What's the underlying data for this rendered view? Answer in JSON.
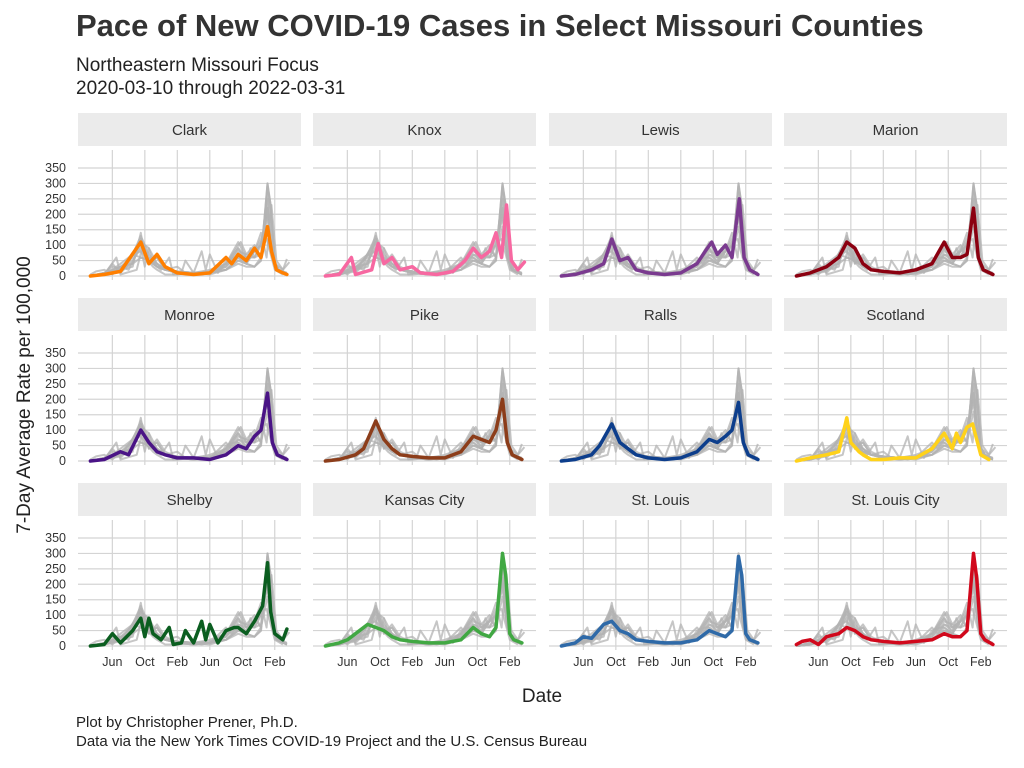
{
  "header": {
    "title": "Pace of New COVID-19 Cases in Select Missouri Counties",
    "subtitle_line1": "Northeastern Missouri Focus",
    "subtitle_line2": "2020-03-10 through 2022-03-31"
  },
  "caption": {
    "line1": "Plot by Christopher Prener, Ph.D.",
    "line2": "Data via the New York Times COVID-19 Project and the U.S. Census Bureau"
  },
  "chart_data": {
    "type": "line",
    "layout": "faceted small multiples, 3 rows x 4 columns, shared axes",
    "xlabel": "Date",
    "ylabel": "7-Day Average Rate per 100,000",
    "x_range_months": [
      0,
      25
    ],
    "x_unit": "months since 2020-03-01",
    "x_ticks": [
      {
        "label": "Jun",
        "month": 3
      },
      {
        "label": "Oct",
        "month": 7
      },
      {
        "label": "Feb",
        "month": 11
      },
      {
        "label": "Jun",
        "month": 15
      },
      {
        "label": "Oct",
        "month": 19
      },
      {
        "label": "Feb",
        "month": 23
      }
    ],
    "ylim": [
      0,
      350
    ],
    "y_ticks": [
      0,
      50,
      100,
      150,
      200,
      250,
      300,
      350
    ],
    "background_series_color": "#b3b3b3",
    "background_note": "every panel shows all counties in grey behind the highlighted county",
    "panels": [
      {
        "name": "Clark",
        "color": "#ff7f00",
        "points": [
          [
            0.3,
            0
          ],
          [
            2,
            5
          ],
          [
            4,
            15
          ],
          [
            6.5,
            110
          ],
          [
            7.5,
            40
          ],
          [
            8.5,
            70
          ],
          [
            9.5,
            30
          ],
          [
            11,
            10
          ],
          [
            13,
            5
          ],
          [
            15,
            10
          ],
          [
            17,
            60
          ],
          [
            17.7,
            40
          ],
          [
            18.5,
            70
          ],
          [
            19.5,
            50
          ],
          [
            20.5,
            90
          ],
          [
            21.3,
            60
          ],
          [
            22.1,
            160
          ],
          [
            22.6,
            80
          ],
          [
            23.2,
            20
          ],
          [
            24,
            10
          ],
          [
            24.5,
            5
          ]
        ]
      },
      {
        "name": "Knox",
        "color": "#f768a1",
        "points": [
          [
            0.3,
            0
          ],
          [
            2,
            5
          ],
          [
            3.5,
            60
          ],
          [
            4,
            5
          ],
          [
            6,
            20
          ],
          [
            6.8,
            105
          ],
          [
            7.5,
            40
          ],
          [
            8.5,
            60
          ],
          [
            9.5,
            20
          ],
          [
            11,
            30
          ],
          [
            12,
            10
          ],
          [
            14,
            5
          ],
          [
            16,
            15
          ],
          [
            17.5,
            50
          ],
          [
            18.5,
            90
          ],
          [
            19.5,
            60
          ],
          [
            20.5,
            80
          ],
          [
            21.3,
            140
          ],
          [
            22,
            60
          ],
          [
            22.6,
            230
          ],
          [
            23.2,
            50
          ],
          [
            24,
            20
          ],
          [
            24.8,
            45
          ]
        ]
      },
      {
        "name": "Lewis",
        "color": "#7a3a8f",
        "points": [
          [
            0.3,
            0
          ],
          [
            2,
            5
          ],
          [
            4,
            20
          ],
          [
            5.5,
            40
          ],
          [
            6.5,
            120
          ],
          [
            7.5,
            50
          ],
          [
            8.5,
            60
          ],
          [
            9.5,
            20
          ],
          [
            11,
            10
          ],
          [
            13,
            5
          ],
          [
            15,
            10
          ],
          [
            17,
            40
          ],
          [
            18,
            80
          ],
          [
            18.8,
            110
          ],
          [
            19.5,
            70
          ],
          [
            20.5,
            100
          ],
          [
            21.3,
            60
          ],
          [
            22.2,
            250
          ],
          [
            22.8,
            60
          ],
          [
            23.5,
            20
          ],
          [
            24.5,
            5
          ]
        ]
      },
      {
        "name": "Marion",
        "color": "#8b0010",
        "points": [
          [
            0.3,
            0
          ],
          [
            2,
            10
          ],
          [
            4,
            30
          ],
          [
            5.5,
            60
          ],
          [
            6.5,
            110
          ],
          [
            7.5,
            90
          ],
          [
            8.5,
            40
          ],
          [
            9.5,
            20
          ],
          [
            11,
            15
          ],
          [
            13,
            10
          ],
          [
            15,
            20
          ],
          [
            17,
            40
          ],
          [
            18.5,
            110
          ],
          [
            19.5,
            60
          ],
          [
            20.5,
            60
          ],
          [
            21.3,
            70
          ],
          [
            22.1,
            220
          ],
          [
            22.7,
            60
          ],
          [
            23.3,
            20
          ],
          [
            24.5,
            5
          ]
        ]
      },
      {
        "name": "Monroe",
        "color": "#4a1486",
        "points": [
          [
            0.3,
            0
          ],
          [
            2,
            5
          ],
          [
            4,
            30
          ],
          [
            5,
            20
          ],
          [
            6.5,
            100
          ],
          [
            7.5,
            60
          ],
          [
            8.5,
            30
          ],
          [
            9.5,
            20
          ],
          [
            11,
            10
          ],
          [
            13,
            10
          ],
          [
            15,
            5
          ],
          [
            17,
            20
          ],
          [
            18.5,
            50
          ],
          [
            19.5,
            40
          ],
          [
            20.5,
            80
          ],
          [
            21.3,
            100
          ],
          [
            22.1,
            220
          ],
          [
            22.7,
            60
          ],
          [
            23.3,
            20
          ],
          [
            24.5,
            5
          ]
        ]
      },
      {
        "name": "Pike",
        "color": "#8c3d1a",
        "points": [
          [
            0.3,
            0
          ],
          [
            2,
            5
          ],
          [
            4,
            20
          ],
          [
            5,
            40
          ],
          [
            6.5,
            130
          ],
          [
            7.5,
            70
          ],
          [
            8.5,
            40
          ],
          [
            9.5,
            20
          ],
          [
            11,
            15
          ],
          [
            13,
            10
          ],
          [
            15,
            10
          ],
          [
            17,
            30
          ],
          [
            18.5,
            80
          ],
          [
            19.5,
            70
          ],
          [
            20.5,
            60
          ],
          [
            21.3,
            100
          ],
          [
            22.1,
            200
          ],
          [
            22.7,
            60
          ],
          [
            23.3,
            20
          ],
          [
            24.5,
            5
          ]
        ]
      },
      {
        "name": "Ralls",
        "color": "#0d3e8c",
        "points": [
          [
            0.3,
            0
          ],
          [
            2,
            5
          ],
          [
            4,
            20
          ],
          [
            5,
            50
          ],
          [
            6.5,
            120
          ],
          [
            7.5,
            60
          ],
          [
            8.5,
            40
          ],
          [
            9.5,
            20
          ],
          [
            11,
            10
          ],
          [
            13,
            5
          ],
          [
            15,
            10
          ],
          [
            17,
            30
          ],
          [
            18.5,
            70
          ],
          [
            19.5,
            60
          ],
          [
            20.5,
            80
          ],
          [
            21.3,
            100
          ],
          [
            22.1,
            190
          ],
          [
            22.7,
            60
          ],
          [
            23.3,
            20
          ],
          [
            24.5,
            5
          ]
        ]
      },
      {
        "name": "Scotland",
        "color": "#ffd21a",
        "points": [
          [
            0.3,
            0
          ],
          [
            2,
            10
          ],
          [
            4,
            20
          ],
          [
            5.5,
            30
          ],
          [
            6.5,
            140
          ],
          [
            7,
            60
          ],
          [
            8,
            30
          ],
          [
            8.5,
            20
          ],
          [
            9.5,
            5
          ],
          [
            11,
            5
          ],
          [
            13,
            10
          ],
          [
            15,
            10
          ],
          [
            17,
            40
          ],
          [
            18.5,
            90
          ],
          [
            19.5,
            40
          ],
          [
            20,
            90
          ],
          [
            20.5,
            60
          ],
          [
            21.3,
            110
          ],
          [
            22,
            120
          ],
          [
            22.5,
            70
          ],
          [
            23,
            20
          ],
          [
            24,
            5
          ]
        ]
      },
      {
        "name": "Shelby",
        "color": "#0b5e20",
        "points": [
          [
            0.3,
            0
          ],
          [
            2,
            5
          ],
          [
            3,
            40
          ],
          [
            4,
            10
          ],
          [
            5.5,
            50
          ],
          [
            6.5,
            90
          ],
          [
            7,
            30
          ],
          [
            7.5,
            90
          ],
          [
            8,
            40
          ],
          [
            9,
            20
          ],
          [
            10,
            60
          ],
          [
            10.5,
            5
          ],
          [
            11.5,
            10
          ],
          [
            12,
            50
          ],
          [
            13,
            10
          ],
          [
            14,
            80
          ],
          [
            14.5,
            20
          ],
          [
            15,
            70
          ],
          [
            16,
            10
          ],
          [
            17,
            50
          ],
          [
            18,
            60
          ],
          [
            18.5,
            60
          ],
          [
            19.5,
            40
          ],
          [
            20.5,
            80
          ],
          [
            21.5,
            130
          ],
          [
            22.1,
            270
          ],
          [
            22.5,
            110
          ],
          [
            23,
            40
          ],
          [
            24,
            20
          ],
          [
            24.5,
            55
          ]
        ]
      },
      {
        "name": "Kansas City",
        "color": "#41a843",
        "points": [
          [
            0.3,
            0
          ],
          [
            2,
            10
          ],
          [
            3,
            20
          ],
          [
            4,
            40
          ],
          [
            5.5,
            70
          ],
          [
            6.5,
            60
          ],
          [
            7.5,
            50
          ],
          [
            8.5,
            30
          ],
          [
            9.5,
            20
          ],
          [
            11,
            15
          ],
          [
            13,
            10
          ],
          [
            15,
            10
          ],
          [
            17,
            20
          ],
          [
            18.5,
            60
          ],
          [
            19.5,
            40
          ],
          [
            20.5,
            30
          ],
          [
            21.3,
            60
          ],
          [
            22.1,
            300
          ],
          [
            22.5,
            230
          ],
          [
            23,
            40
          ],
          [
            23.5,
            20
          ],
          [
            24.5,
            10
          ]
        ]
      },
      {
        "name": "St. Louis",
        "color": "#2f6aa8",
        "points": [
          [
            0.3,
            0
          ],
          [
            2,
            10
          ],
          [
            3,
            30
          ],
          [
            4,
            25
          ],
          [
            5.5,
            70
          ],
          [
            6.5,
            80
          ],
          [
            7.5,
            50
          ],
          [
            8.5,
            40
          ],
          [
            9.5,
            20
          ],
          [
            11,
            15
          ],
          [
            13,
            10
          ],
          [
            15,
            10
          ],
          [
            17,
            20
          ],
          [
            18.5,
            50
          ],
          [
            19.5,
            40
          ],
          [
            20.5,
            30
          ],
          [
            21.3,
            50
          ],
          [
            22.1,
            290
          ],
          [
            22.5,
            230
          ],
          [
            23,
            40
          ],
          [
            23.5,
            20
          ],
          [
            24.5,
            10
          ]
        ]
      },
      {
        "name": "St. Louis City",
        "color": "#d1081c",
        "points": [
          [
            0.3,
            5
          ],
          [
            1,
            15
          ],
          [
            2,
            20
          ],
          [
            3,
            5
          ],
          [
            4,
            30
          ],
          [
            5.5,
            40
          ],
          [
            6.5,
            60
          ],
          [
            7.5,
            50
          ],
          [
            8.5,
            30
          ],
          [
            9.5,
            20
          ],
          [
            11,
            15
          ],
          [
            13,
            10
          ],
          [
            15,
            15
          ],
          [
            17,
            20
          ],
          [
            18.5,
            40
          ],
          [
            19.5,
            30
          ],
          [
            20.5,
            30
          ],
          [
            21.3,
            50
          ],
          [
            22.1,
            300
          ],
          [
            22.5,
            220
          ],
          [
            23,
            40
          ],
          [
            23.5,
            20
          ],
          [
            24.5,
            5
          ]
        ]
      }
    ]
  }
}
